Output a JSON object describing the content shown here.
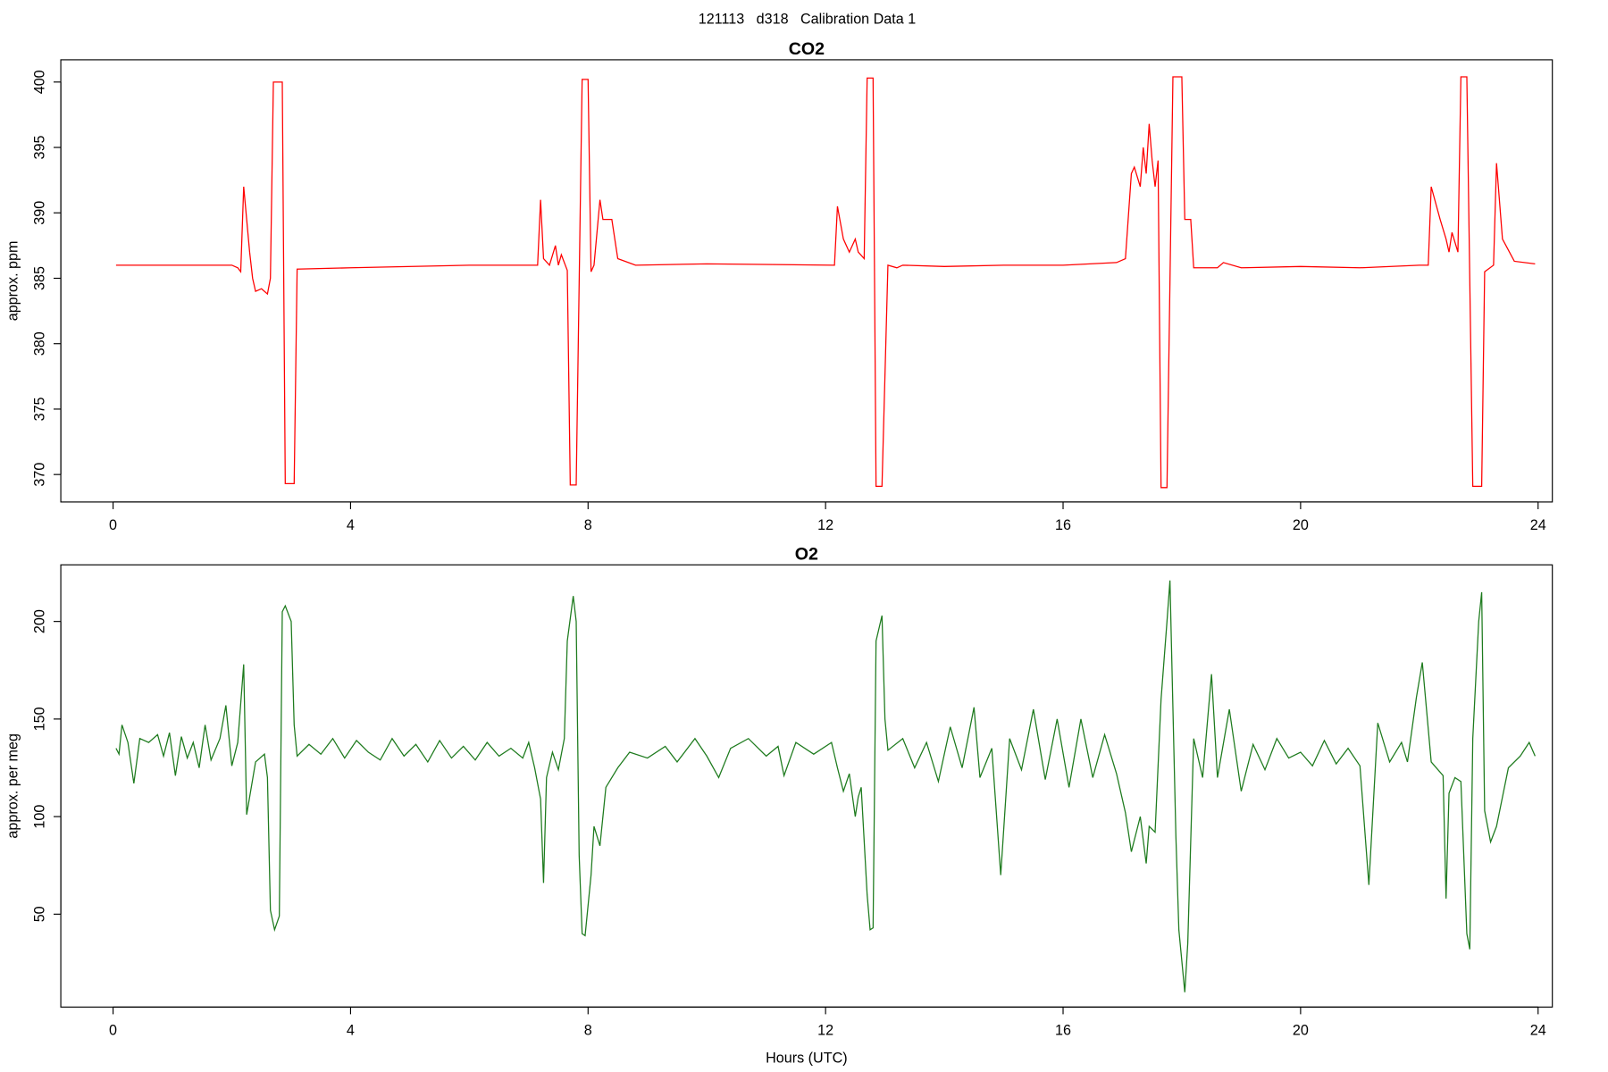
{
  "title": "121113   d318   Calibration Data 1",
  "chart_data": [
    {
      "type": "line",
      "title": "CO2",
      "ylabel": "approx. ppm",
      "color": "#ff0000",
      "xlim": [
        -0.88,
        24.24
      ],
      "ylim": [
        367.9,
        401.7
      ],
      "xticks": [
        0,
        4,
        8,
        12,
        16,
        20,
        24
      ],
      "yticks": [
        370,
        375,
        380,
        385,
        390,
        395,
        400
      ],
      "x": [
        0.05,
        2.0,
        2.1,
        2.15,
        2.2,
        2.3,
        2.35,
        2.4,
        2.5,
        2.6,
        2.65,
        2.7,
        2.85,
        2.9,
        3.05,
        3.1,
        4,
        6,
        7.15,
        7.2,
        7.25,
        7.35,
        7.45,
        7.5,
        7.55,
        7.65,
        7.7,
        7.8,
        7.9,
        8.0,
        8.05,
        8.1,
        8.2,
        8.25,
        8.4,
        8.5,
        8.8,
        10,
        12.15,
        12.2,
        12.3,
        12.4,
        12.5,
        12.55,
        12.65,
        12.7,
        12.8,
        12.85,
        12.95,
        13.05,
        13.2,
        13.3,
        14,
        15,
        16,
        16.9,
        17.05,
        17.15,
        17.2,
        17.3,
        17.35,
        17.4,
        17.45,
        17.5,
        17.55,
        17.6,
        17.65,
        17.75,
        17.85,
        18,
        18.05,
        18.15,
        18.2,
        18.6,
        18.7,
        19,
        20,
        21,
        22,
        22.15,
        22.2,
        22.35,
        22.45,
        22.5,
        22.55,
        22.65,
        22.7,
        22.8,
        22.9,
        23.05,
        23.1,
        23.25,
        23.3,
        23.4,
        23.6,
        23.95
      ],
      "values": [
        386,
        386,
        385.8,
        385.5,
        392,
        387,
        385,
        384,
        384.2,
        383.8,
        385,
        400,
        400,
        369.3,
        369.3,
        385.7,
        385.8,
        386,
        386,
        391,
        386.5,
        386,
        387.5,
        386,
        386.8,
        385.6,
        369.2,
        369.2,
        400.2,
        400.2,
        385.5,
        386,
        391,
        389.5,
        389.5,
        386.5,
        386,
        386.1,
        386,
        390.5,
        388,
        387,
        388,
        387,
        386.5,
        400.3,
        400.3,
        369.1,
        369.1,
        386,
        385.8,
        386,
        385.9,
        386,
        386,
        386.2,
        386.5,
        393,
        393.5,
        392,
        395,
        393,
        396.8,
        394,
        392,
        394,
        369,
        369,
        400.4,
        400.4,
        389.5,
        389.5,
        385.8,
        385.8,
        386.2,
        385.8,
        385.9,
        385.8,
        386,
        386,
        392,
        389.5,
        388,
        387,
        388.5,
        387,
        400.4,
        400.4,
        369.1,
        369.1,
        385.5,
        386,
        393.8,
        388,
        386.3,
        386.1
      ]
    },
    {
      "type": "line",
      "title": "O2",
      "ylabel": "approx. per meg",
      "xlabel": "Hours (UTC)",
      "color": "#1e7b1e",
      "xlim": [
        -0.88,
        24.24
      ],
      "ylim": [
        2.4,
        229
      ],
      "xticks": [
        0,
        4,
        8,
        12,
        16,
        20,
        24
      ],
      "yticks": [
        50,
        100,
        150,
        200
      ],
      "x": [
        0.05,
        0.1,
        0.15,
        0.25,
        0.35,
        0.45,
        0.6,
        0.75,
        0.85,
        0.95,
        1.05,
        1.15,
        1.25,
        1.35,
        1.45,
        1.55,
        1.65,
        1.8,
        1.9,
        2.0,
        2.1,
        2.2,
        2.25,
        2.4,
        2.55,
        2.6,
        2.65,
        2.72,
        2.8,
        2.85,
        2.9,
        3.0,
        3.05,
        3.1,
        3.3,
        3.5,
        3.7,
        3.9,
        4.1,
        4.3,
        4.5,
        4.7,
        4.9,
        5.1,
        5.3,
        5.5,
        5.7,
        5.9,
        6.1,
        6.3,
        6.5,
        6.7,
        6.9,
        7.0,
        7.1,
        7.2,
        7.25,
        7.3,
        7.4,
        7.5,
        7.6,
        7.65,
        7.75,
        7.8,
        7.85,
        7.9,
        7.95,
        8.05,
        8.1,
        8.2,
        8.3,
        8.5,
        8.7,
        9,
        9.3,
        9.5,
        9.8,
        10,
        10.2,
        10.4,
        10.7,
        11,
        11.2,
        11.3,
        11.5,
        11.8,
        12.1,
        12.2,
        12.3,
        12.4,
        12.5,
        12.55,
        12.6,
        12.7,
        12.75,
        12.8,
        12.85,
        12.95,
        13.0,
        13.05,
        13.3,
        13.5,
        13.7,
        13.9,
        14.1,
        14.3,
        14.5,
        14.6,
        14.8,
        14.95,
        15.1,
        15.3,
        15.5,
        15.7,
        15.9,
        16.1,
        16.3,
        16.5,
        16.7,
        16.9,
        17.05,
        17.15,
        17.3,
        17.4,
        17.45,
        17.55,
        17.65,
        17.75,
        17.8,
        17.9,
        17.95,
        18.05,
        18.1,
        18.2,
        18.35,
        18.5,
        18.6,
        18.8,
        19.0,
        19.2,
        19.4,
        19.6,
        19.8,
        20.0,
        20.2,
        20.4,
        20.6,
        20.8,
        21.0,
        21.15,
        21.3,
        21.5,
        21.7,
        21.8,
        21.95,
        22.05,
        22.2,
        22.4,
        22.45,
        22.5,
        22.6,
        22.7,
        22.8,
        22.85,
        22.9,
        23.0,
        23.05,
        23.1,
        23.2,
        23.3,
        23.5,
        23.7,
        23.85,
        23.95
      ],
      "values": [
        135,
        132,
        147,
        138,
        117,
        140,
        138,
        142,
        131,
        143,
        121,
        141,
        130,
        138,
        125,
        147,
        129,
        140,
        157,
        126,
        138,
        178,
        101,
        128,
        132,
        120,
        52,
        42,
        49,
        205,
        208,
        200,
        147,
        131,
        137,
        132,
        140,
        130,
        139,
        133,
        129,
        140,
        131,
        137,
        128,
        139,
        130,
        136,
        129,
        138,
        131,
        135,
        130,
        138,
        125,
        109,
        66,
        120,
        133,
        124,
        140,
        190,
        213,
        200,
        80,
        40,
        39,
        70,
        95,
        85,
        115,
        125,
        133,
        130,
        136,
        128,
        140,
        131,
        120,
        135,
        140,
        131,
        136,
        121,
        138,
        132,
        138,
        125,
        113,
        122,
        100,
        110,
        115,
        60,
        42,
        43,
        190,
        203,
        150,
        134,
        140,
        125,
        138,
        118,
        146,
        125,
        156,
        120,
        135,
        70,
        140,
        124,
        155,
        119,
        150,
        115,
        150,
        120,
        142,
        122,
        102,
        82,
        100,
        76,
        95,
        92,
        160,
        200,
        221,
        90,
        42,
        10,
        35,
        140,
        120,
        173,
        120,
        155,
        113,
        137,
        124,
        140,
        130,
        133,
        126,
        139,
        127,
        135,
        126,
        65,
        148,
        128,
        138,
        128,
        161,
        179,
        128,
        121,
        58,
        112,
        120,
        118,
        40,
        32,
        140,
        200,
        215,
        103,
        87,
        95,
        125,
        131,
        138,
        131
      ]
    }
  ]
}
